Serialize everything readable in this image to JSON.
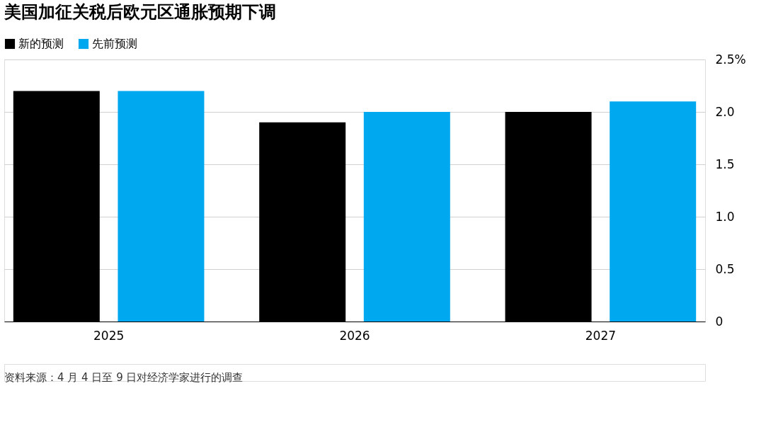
{
  "chart_data": {
    "type": "bar",
    "title": "美国加征关税后欧元区通胀预期下调",
    "categories": [
      "2025",
      "2026",
      "2027"
    ],
    "series": [
      {
        "name": "新的预测",
        "color": "#000000",
        "values": [
          2.2,
          1.9,
          2.0
        ]
      },
      {
        "name": "先前预测",
        "color": "#00a8f0",
        "values": [
          2.2,
          2.0,
          2.1
        ]
      }
    ],
    "ylim": [
      0,
      2.5
    ],
    "yticks": [
      0,
      0.5,
      {
        "value": 1,
        "label": "1.0"
      },
      1.5,
      {
        "value": 2,
        "label": "2.0"
      },
      {
        "value": 2.5,
        "label": "2.5%"
      }
    ],
    "grid": "y",
    "legend": "top left",
    "annotations": [
      "资料来源：4 月 4 日至 9 日对经济学家进行的调查"
    ]
  }
}
